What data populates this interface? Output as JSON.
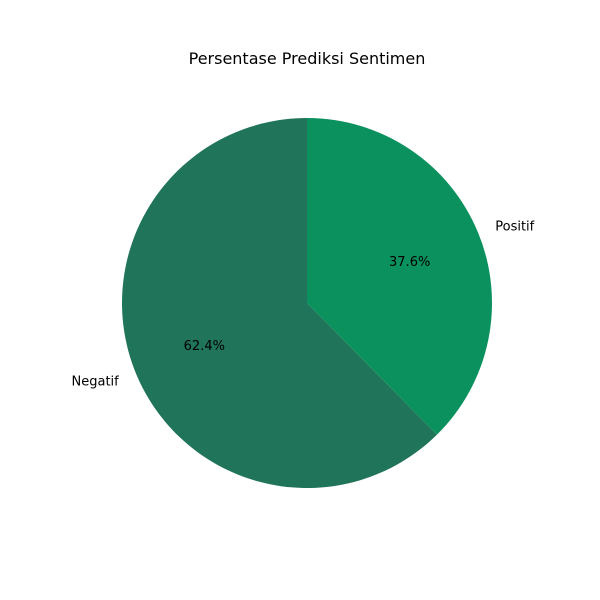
{
  "chart_data": {
    "type": "pie",
    "title": "Persentase Prediksi Sentimen",
    "slices": [
      {
        "label": "Negatif",
        "value": 62.4,
        "pct_label": "62.4%",
        "color": "#20745a"
      },
      {
        "label": "Positif",
        "value": 37.6,
        "pct_label": "37.6%",
        "color": "#0b915e"
      }
    ],
    "start": "top",
    "direction": "counterclockwise",
    "legend": "none"
  }
}
